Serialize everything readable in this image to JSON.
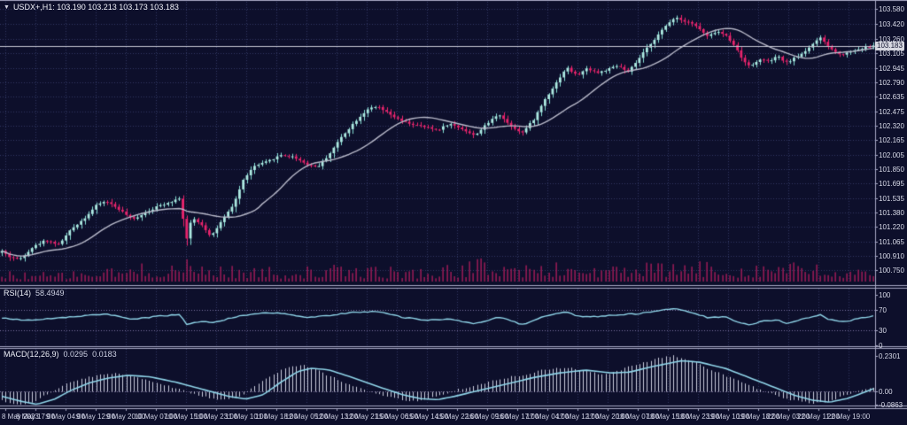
{
  "title": {
    "symbol": "USDX+",
    "timeframe": "H1",
    "text": "USDX+,H1: 103.190 103.213 103.173 103.183",
    "ohlc": {
      "open": "103.190",
      "high": "103.213",
      "low": "103.173",
      "close": "103.183"
    }
  },
  "colors": {
    "background": "#0d0f2b",
    "grid": "#313761",
    "level_line": "#7b6fa0",
    "separator": "#a7a8c4",
    "bull": "#aeeae2",
    "bull_wick": "#84dbd2",
    "bear": "#e8246c",
    "ma_line": "#b8b9c9",
    "volume": "#c11f62",
    "indicator_line": "#8fd4e8",
    "histogram": "#c9cbdb",
    "axis_text": "#d8dae8",
    "current_price_line": "#c7c8d4",
    "badge_bg": "#d6d7e0",
    "badge_text": "#10122f"
  },
  "chart_data": {
    "type": "candlestick",
    "symbol": "USDX+",
    "timeframe": "H1",
    "legend_position": "top-left",
    "grid": "dotted",
    "x_ticks": [
      "8 May 2023",
      "8 May 17:00",
      "9 May 04:00",
      "9 May 12:00",
      "9 May 20:00",
      "10 May 07:00",
      "10 May 15:00",
      "10 May 23:00",
      "11 May 10:00",
      "11 May 18:00",
      "12 May 05:00",
      "12 May 13:00",
      "12 May 21:00",
      "15 May 06:00",
      "15 May 14:00",
      "15 May 22:00",
      "16 May 09:00",
      "16 May 17:00",
      "17 May 04:00",
      "17 May 12:00",
      "17 May 20:00",
      "18 May 07:00",
      "18 May 15:00",
      "18 May 23:00",
      "19 May 10:00",
      "19 May 18:00",
      "22 May 03:00",
      "22 May 11:00",
      "22 May 19:00"
    ],
    "main_chart": {
      "ylim": [
        100.63,
        103.66
      ],
      "y_ticks": [
        "103.580",
        "103.420",
        "103.260",
        "103.105",
        "102.945",
        "102.790",
        "102.635",
        "102.475",
        "102.320",
        "102.165",
        "102.005",
        "101.850",
        "101.695",
        "101.535",
        "101.380",
        "101.220",
        "101.065",
        "100.910",
        "100.750"
      ],
      "current_price": "103.183",
      "current_price_value": 103.183,
      "ma_period": 20,
      "candle_count": 232,
      "close_path": [
        [
          0,
          100.96
        ],
        [
          0.008,
          100.9
        ],
        [
          0.02,
          100.87
        ],
        [
          0.035,
          101.0
        ],
        [
          0.05,
          101.08
        ],
        [
          0.065,
          101.03
        ],
        [
          0.08,
          101.2
        ],
        [
          0.095,
          101.32
        ],
        [
          0.11,
          101.47
        ],
        [
          0.12,
          101.5
        ],
        [
          0.135,
          101.41
        ],
        [
          0.15,
          101.3
        ],
        [
          0.165,
          101.38
        ],
        [
          0.18,
          101.45
        ],
        [
          0.195,
          101.5
        ],
        [
          0.205,
          101.54
        ],
        [
          0.211,
          101.05
        ],
        [
          0.218,
          101.32
        ],
        [
          0.228,
          101.26
        ],
        [
          0.24,
          101.12
        ],
        [
          0.252,
          101.28
        ],
        [
          0.265,
          101.45
        ],
        [
          0.278,
          101.75
        ],
        [
          0.29,
          101.88
        ],
        [
          0.305,
          101.93
        ],
        [
          0.32,
          102.0
        ],
        [
          0.335,
          101.98
        ],
        [
          0.35,
          101.9
        ],
        [
          0.362,
          101.87
        ],
        [
          0.375,
          102.0
        ],
        [
          0.39,
          102.2
        ],
        [
          0.405,
          102.36
        ],
        [
          0.42,
          102.5
        ],
        [
          0.432,
          102.52
        ],
        [
          0.445,
          102.44
        ],
        [
          0.458,
          102.37
        ],
        [
          0.472,
          102.33
        ],
        [
          0.487,
          102.3
        ],
        [
          0.5,
          102.27
        ],
        [
          0.513,
          102.34
        ],
        [
          0.527,
          102.29
        ],
        [
          0.542,
          102.21
        ],
        [
          0.556,
          102.33
        ],
        [
          0.57,
          102.45
        ],
        [
          0.582,
          102.33
        ],
        [
          0.597,
          102.24
        ],
        [
          0.61,
          102.38
        ],
        [
          0.623,
          102.6
        ],
        [
          0.636,
          102.78
        ],
        [
          0.648,
          102.95
        ],
        [
          0.66,
          102.86
        ],
        [
          0.672,
          102.94
        ],
        [
          0.684,
          102.89
        ],
        [
          0.696,
          102.93
        ],
        [
          0.708,
          102.97
        ],
        [
          0.718,
          102.89
        ],
        [
          0.73,
          103.03
        ],
        [
          0.742,
          103.18
        ],
        [
          0.753,
          103.3
        ],
        [
          0.764,
          103.42
        ],
        [
          0.773,
          103.5
        ],
        [
          0.78,
          103.46
        ],
        [
          0.79,
          103.44
        ],
        [
          0.8,
          103.37
        ],
        [
          0.81,
          103.28
        ],
        [
          0.82,
          103.34
        ],
        [
          0.83,
          103.3
        ],
        [
          0.84,
          103.2
        ],
        [
          0.85,
          103.03
        ],
        [
          0.86,
          102.96
        ],
        [
          0.87,
          103.04
        ],
        [
          0.88,
          103.01
        ],
        [
          0.89,
          103.07
        ],
        [
          0.9,
          103.0
        ],
        [
          0.91,
          103.05
        ],
        [
          0.92,
          103.11
        ],
        [
          0.93,
          103.2
        ],
        [
          0.94,
          103.27
        ],
        [
          0.948,
          103.18
        ],
        [
          0.957,
          103.11
        ],
        [
          0.966,
          103.09
        ],
        [
          0.975,
          103.13
        ],
        [
          0.985,
          103.15
        ],
        [
          1,
          103.183
        ]
      ],
      "volume_envelope": [
        [
          0,
          0.45
        ],
        [
          0.06,
          0.35
        ],
        [
          0.12,
          0.55
        ],
        [
          0.21,
          0.85
        ],
        [
          0.27,
          0.6
        ],
        [
          0.33,
          0.55
        ],
        [
          0.38,
          0.65
        ],
        [
          0.43,
          0.6
        ],
        [
          0.5,
          0.55
        ],
        [
          0.56,
          1.0
        ],
        [
          0.6,
          0.7
        ],
        [
          0.65,
          0.8
        ],
        [
          0.7,
          0.65
        ],
        [
          0.75,
          0.75
        ],
        [
          0.8,
          0.8
        ],
        [
          0.85,
          0.7
        ],
        [
          0.9,
          0.9
        ],
        [
          0.95,
          0.55
        ],
        [
          1,
          0.4
        ]
      ]
    },
    "rsi": {
      "label": "RSI(14)",
      "value": "58.4949",
      "ylim": [
        0,
        100
      ],
      "y_ticks": [
        "100",
        "70",
        "30",
        "0"
      ],
      "y_tick_values": [
        100,
        70,
        30,
        0
      ],
      "levels": [
        70,
        30
      ],
      "path": [
        [
          0,
          54
        ],
        [
          0.03,
          50
        ],
        [
          0.06,
          53
        ],
        [
          0.09,
          58
        ],
        [
          0.12,
          62
        ],
        [
          0.15,
          51
        ],
        [
          0.18,
          58
        ],
        [
          0.205,
          61
        ],
        [
          0.211,
          41
        ],
        [
          0.228,
          48
        ],
        [
          0.24,
          44
        ],
        [
          0.265,
          55
        ],
        [
          0.29,
          63
        ],
        [
          0.32,
          64
        ],
        [
          0.35,
          55
        ],
        [
          0.375,
          59
        ],
        [
          0.405,
          66
        ],
        [
          0.432,
          67
        ],
        [
          0.458,
          56
        ],
        [
          0.487,
          50
        ],
        [
          0.513,
          52
        ],
        [
          0.542,
          42
        ],
        [
          0.57,
          56
        ],
        [
          0.597,
          41
        ],
        [
          0.623,
          57
        ],
        [
          0.648,
          66
        ],
        [
          0.66,
          58
        ],
        [
          0.684,
          57
        ],
        [
          0.708,
          61
        ],
        [
          0.73,
          62
        ],
        [
          0.753,
          69
        ],
        [
          0.773,
          72
        ],
        [
          0.79,
          66
        ],
        [
          0.81,
          55
        ],
        [
          0.83,
          56
        ],
        [
          0.85,
          43
        ],
        [
          0.86,
          40
        ],
        [
          0.87,
          48
        ],
        [
          0.89,
          50
        ],
        [
          0.9,
          44
        ],
        [
          0.92,
          52
        ],
        [
          0.94,
          61
        ],
        [
          0.948,
          52
        ],
        [
          0.966,
          46
        ],
        [
          0.985,
          54
        ],
        [
          1,
          58.4949
        ]
      ]
    },
    "macd": {
      "label": "MACD(12,26,9)",
      "value_main": "0.0295",
      "value_signal": "0.0183",
      "ylim": [
        -0.084,
        0.275
      ],
      "y_ticks": [
        {
          "label": "0.2301",
          "value": 0.2301
        },
        {
          "label": "0.00",
          "value": 0
        },
        {
          "label": "-0.0863",
          "value": -0.0863
        }
      ],
      "signal_path": [
        [
          0,
          -0.03
        ],
        [
          0.02,
          -0.06
        ],
        [
          0.04,
          -0.082
        ],
        [
          0.06,
          -0.05
        ],
        [
          0.08,
          0.01
        ],
        [
          0.1,
          0.055
        ],
        [
          0.12,
          0.085
        ],
        [
          0.145,
          0.105
        ],
        [
          0.17,
          0.095
        ],
        [
          0.2,
          0.06
        ],
        [
          0.23,
          0.015
        ],
        [
          0.26,
          -0.03
        ],
        [
          0.28,
          -0.048
        ],
        [
          0.3,
          -0.02
        ],
        [
          0.32,
          0.06
        ],
        [
          0.34,
          0.13
        ],
        [
          0.355,
          0.15
        ],
        [
          0.375,
          0.14
        ],
        [
          0.4,
          0.095
        ],
        [
          0.43,
          0.035
        ],
        [
          0.46,
          -0.02
        ],
        [
          0.48,
          -0.045
        ],
        [
          0.5,
          -0.052
        ],
        [
          0.52,
          -0.03
        ],
        [
          0.55,
          0.01
        ],
        [
          0.58,
          0.05
        ],
        [
          0.61,
          0.09
        ],
        [
          0.64,
          0.12
        ],
        [
          0.67,
          0.138
        ],
        [
          0.7,
          0.12
        ],
        [
          0.72,
          0.125
        ],
        [
          0.75,
          0.165
        ],
        [
          0.78,
          0.198
        ],
        [
          0.8,
          0.19
        ],
        [
          0.83,
          0.15
        ],
        [
          0.86,
          0.085
        ],
        [
          0.89,
          0.02
        ],
        [
          0.91,
          -0.025
        ],
        [
          0.93,
          -0.055
        ],
        [
          0.95,
          -0.068
        ],
        [
          0.97,
          -0.045
        ],
        [
          0.985,
          -0.015
        ],
        [
          1,
          0.0183
        ]
      ],
      "main_path": [
        [
          0,
          -0.06
        ],
        [
          0.02,
          -0.085
        ],
        [
          0.035,
          -0.07
        ],
        [
          0.05,
          -0.02
        ],
        [
          0.07,
          0.04
        ],
        [
          0.09,
          0.08
        ],
        [
          0.11,
          0.105
        ],
        [
          0.13,
          0.118
        ],
        [
          0.15,
          0.1
        ],
        [
          0.17,
          0.07
        ],
        [
          0.2,
          0.02
        ],
        [
          0.23,
          -0.03
        ],
        [
          0.25,
          -0.055
        ],
        [
          0.27,
          -0.04
        ],
        [
          0.29,
          0.03
        ],
        [
          0.31,
          0.11
        ],
        [
          0.33,
          0.16
        ],
        [
          0.345,
          0.17
        ],
        [
          0.36,
          0.14
        ],
        [
          0.38,
          0.09
        ],
        [
          0.41,
          0.02
        ],
        [
          0.44,
          -0.03
        ],
        [
          0.46,
          -0.055
        ],
        [
          0.48,
          -0.06
        ],
        [
          0.5,
          -0.03
        ],
        [
          0.52,
          0.01
        ],
        [
          0.55,
          0.05
        ],
        [
          0.58,
          0.09
        ],
        [
          0.6,
          0.11
        ],
        [
          0.62,
          0.14
        ],
        [
          0.645,
          0.155
        ],
        [
          0.665,
          0.14
        ],
        [
          0.685,
          0.11
        ],
        [
          0.7,
          0.12
        ],
        [
          0.72,
          0.16
        ],
        [
          0.75,
          0.21
        ],
        [
          0.77,
          0.2301
        ],
        [
          0.79,
          0.2
        ],
        [
          0.81,
          0.15
        ],
        [
          0.84,
          0.08
        ],
        [
          0.87,
          0.01
        ],
        [
          0.89,
          -0.03
        ],
        [
          0.91,
          -0.06
        ],
        [
          0.93,
          -0.075
        ],
        [
          0.95,
          -0.06
        ],
        [
          0.97,
          -0.02
        ],
        [
          0.985,
          0.01
        ],
        [
          1,
          0.0295
        ]
      ]
    }
  }
}
